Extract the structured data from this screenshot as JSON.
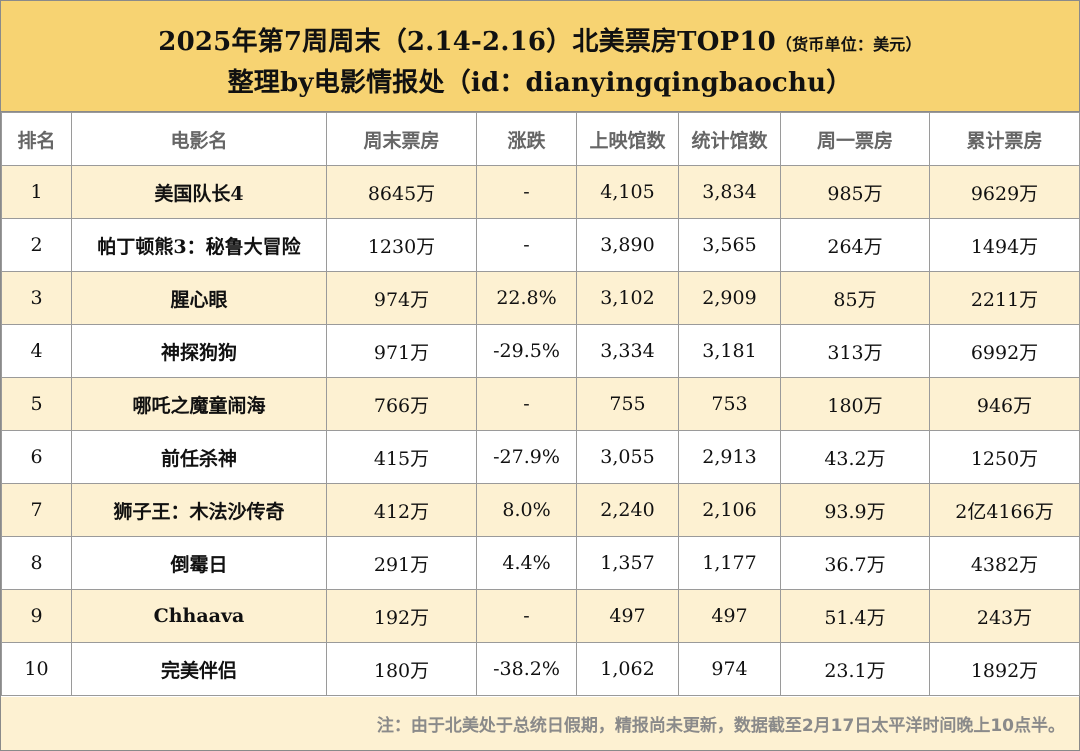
{
  "header": {
    "title_main": "2025年第7周周末（2.14-2.16）北美票房TOP10",
    "title_currency": "（货币单位：美元）",
    "subtitle": "整理by电影情报处（id：dianyingqingbaochu）"
  },
  "table": {
    "columns": [
      "排名",
      "电影名",
      "周末票房",
      "涨跌",
      "上映馆数",
      "统计馆数",
      "周一票房",
      "累计票房"
    ],
    "rows": [
      {
        "rank": "1",
        "title": "美国队长4",
        "weekend": "8645万",
        "change": "-",
        "theaters": "4,105",
        "counted": "3,834",
        "monday": "985万",
        "total": "9629万",
        "trend": "neutral"
      },
      {
        "rank": "2",
        "title": "帕丁顿熊3：秘鲁大冒险",
        "weekend": "1230万",
        "change": "-",
        "theaters": "3,890",
        "counted": "3,565",
        "monday": "264万",
        "total": "1494万",
        "trend": "neutral"
      },
      {
        "rank": "3",
        "title": "腥心眼",
        "weekend": "974万",
        "change": "22.8%",
        "theaters": "3,102",
        "counted": "2,909",
        "monday": "85万",
        "total": "2211万",
        "trend": "up"
      },
      {
        "rank": "4",
        "title": "神探狗狗",
        "weekend": "971万",
        "change": "-29.5%",
        "theaters": "3,334",
        "counted": "3,181",
        "monday": "313万",
        "total": "6992万",
        "trend": "down"
      },
      {
        "rank": "5",
        "title": "哪吒之魔童闹海",
        "weekend": "766万",
        "change": "-",
        "theaters": "755",
        "counted": "753",
        "monday": "180万",
        "total": "946万",
        "trend": "neutral"
      },
      {
        "rank": "6",
        "title": "前任杀神",
        "weekend": "415万",
        "change": "-27.9%",
        "theaters": "3,055",
        "counted": "2,913",
        "monday": "43.2万",
        "total": "1250万",
        "trend": "down"
      },
      {
        "rank": "7",
        "title": "狮子王：木法沙传奇",
        "weekend": "412万",
        "change": "8.0%",
        "theaters": "2,240",
        "counted": "2,106",
        "monday": "93.9万",
        "total": "2亿4166万",
        "trend": "up"
      },
      {
        "rank": "8",
        "title": "倒霉日",
        "weekend": "291万",
        "change": "4.4%",
        "theaters": "1,357",
        "counted": "1,177",
        "monday": "36.7万",
        "total": "4382万",
        "trend": "up"
      },
      {
        "rank": "9",
        "title": "Chhaava",
        "weekend": "192万",
        "change": "-",
        "theaters": "497",
        "counted": "497",
        "monday": "51.4万",
        "total": "243万",
        "trend": "neutral"
      },
      {
        "rank": "10",
        "title": "完美伴侣",
        "weekend": "180万",
        "change": "-38.2%",
        "theaters": "1,062",
        "counted": "974",
        "monday": "23.1万",
        "total": "1892万",
        "trend": "down"
      }
    ]
  },
  "footer": {
    "note": "注：由于北美处于总统日假期，精报尚未更新，数据截至2月17日太平洋时间晚上10点半。"
  },
  "colors": {
    "header_bg": "#f7d372",
    "stripe_bg": "#fdf1d2",
    "up": "#2aa7d8",
    "down": "#e0282e"
  }
}
